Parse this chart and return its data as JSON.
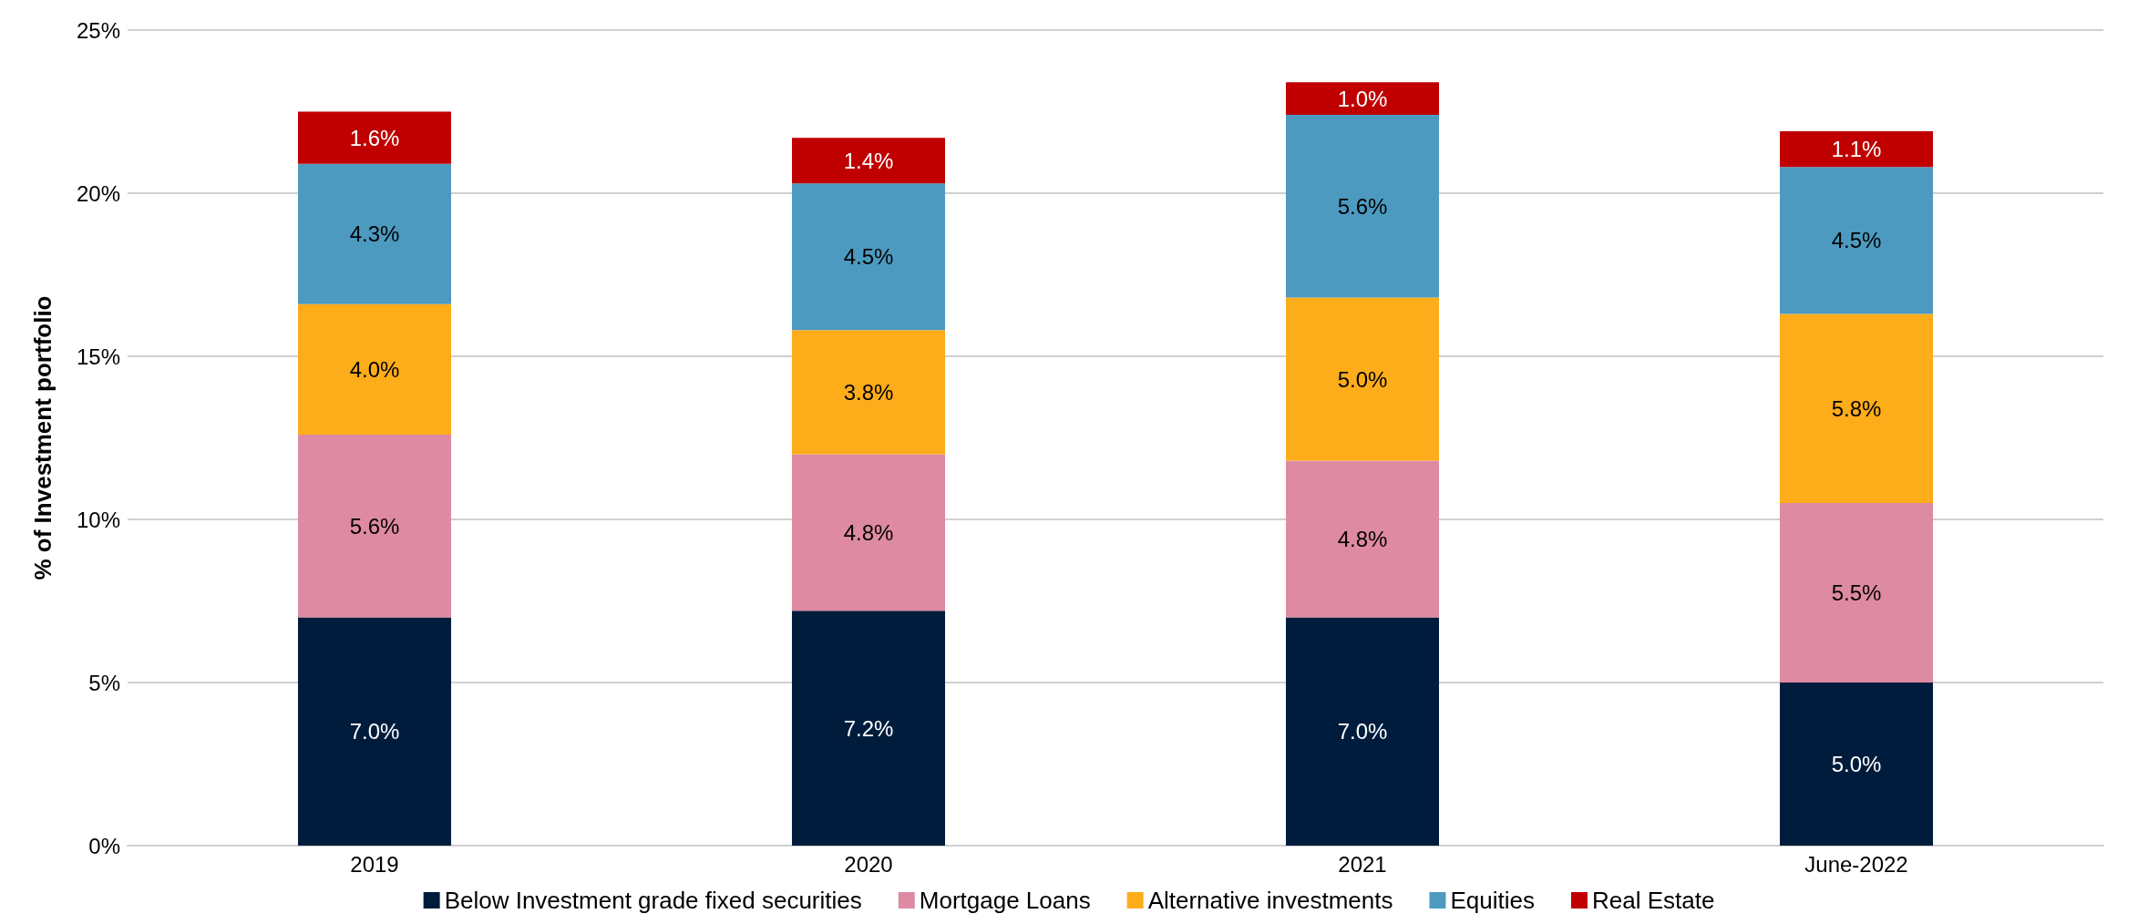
{
  "chart_data": {
    "type": "bar",
    "stacked": true,
    "ylabel": "% of Investment portfolio",
    "categories": [
      "2019",
      "2020",
      "2021",
      "June-2022"
    ],
    "series": [
      {
        "name": "Below Investment grade fixed securities",
        "color": "#001c3d",
        "values": [
          7.0,
          7.2,
          7.0,
          5.0
        ],
        "value_labels": [
          "7.0%",
          "7.2%",
          "7.0%",
          "5.0%"
        ]
      },
      {
        "name": "Mortgage Loans",
        "color": "#de8aa3",
        "values": [
          5.6,
          4.8,
          4.8,
          5.5
        ],
        "value_labels": [
          "5.6%",
          "4.8%",
          "4.8%",
          "5.5%"
        ]
      },
      {
        "name": "Alternative investments",
        "color": "#fdac1a",
        "values": [
          4.0,
          3.8,
          5.0,
          5.8
        ],
        "value_labels": [
          "4.0%",
          "3.8%",
          "5.0%",
          "5.8%"
        ]
      },
      {
        "name": "Equities",
        "color": "#4d9ac1",
        "values": [
          4.3,
          4.5,
          5.6,
          4.5
        ],
        "value_labels": [
          "4.3%",
          "4.5%",
          "5.6%",
          "4.5%"
        ]
      },
      {
        "name": "Real Estate",
        "color": "#c00000",
        "values": [
          1.6,
          1.4,
          1.0,
          1.1
        ],
        "value_labels": [
          "1.6%",
          "1.4%",
          "1.0%",
          "1.1%"
        ]
      }
    ],
    "ylim": [
      0,
      25
    ],
    "yticks": [
      {
        "value": 0,
        "label": "0%"
      },
      {
        "value": 5,
        "label": "5%"
      },
      {
        "value": 10,
        "label": "10%"
      },
      {
        "value": 15,
        "label": "15%"
      },
      {
        "value": 20,
        "label": "20%"
      },
      {
        "value": 25,
        "label": "25%"
      }
    ],
    "grid": "y",
    "legend": "bottom"
  }
}
